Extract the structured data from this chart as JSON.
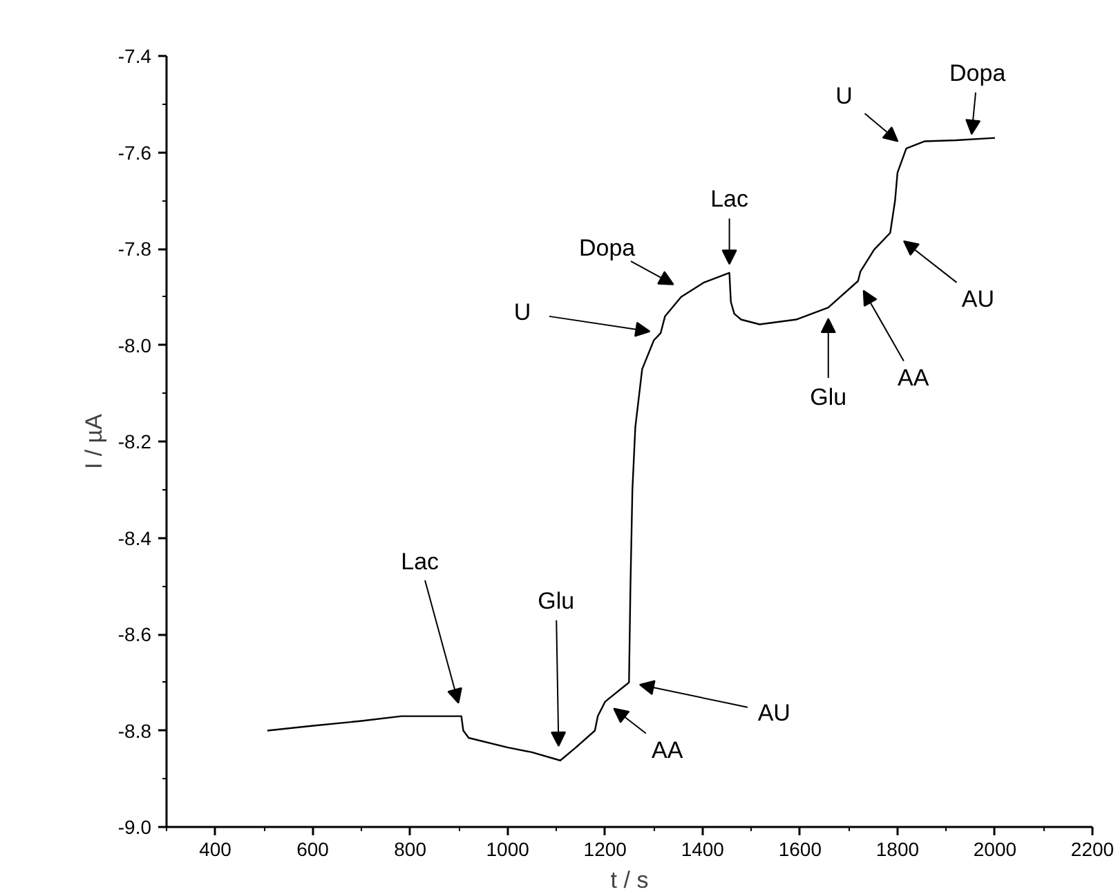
{
  "chart_data": {
    "type": "line",
    "xlabel": "t / s",
    "ylabel": "I / µA",
    "xlim": [
      300,
      2200
    ],
    "xticks": [
      400,
      600,
      800,
      1000,
      1200,
      1400,
      1600,
      1800,
      2000,
      2200
    ],
    "ylim": [
      -9.0,
      -7.4
    ],
    "yticks": [
      {
        "value": -9.0,
        "label": "-9.0"
      },
      -8.8,
      -8.6,
      -8.4,
      -8.2,
      {
        "value": -8.0,
        "label": "-8.0"
      },
      -7.8,
      -7.6,
      -7.4
    ],
    "grid": false,
    "marker": "none",
    "line_style": "solid",
    "series": [
      {
        "color": "#000000",
        "x": [
          507,
          600,
          700,
          782,
          850,
          905,
          909,
          920,
          1000,
          1050,
          1108,
          1140,
          1179,
          1185,
          1200,
          1249,
          1252,
          1256,
          1262,
          1276,
          1300,
          1314,
          1323,
          1356,
          1403,
          1455,
          1458,
          1465,
          1479,
          1517,
          1592,
          1658,
          1719,
          1724,
          1752,
          1785,
          1795,
          1800,
          1818,
          1856,
          1920,
          2000
        ],
        "values": [
          -8.8,
          -8.79,
          -8.78,
          -8.77,
          -8.77,
          -8.77,
          -8.8,
          -8.815,
          -8.835,
          -8.845,
          -8.862,
          -8.835,
          -8.8,
          -8.77,
          -8.74,
          -8.7,
          -8.5,
          -8.3,
          -8.17,
          -8.05,
          -7.99,
          -7.975,
          -7.94,
          -7.9,
          -7.87,
          -7.85,
          -7.91,
          -7.935,
          -7.947,
          -7.957,
          -7.947,
          -7.922,
          -7.867,
          -7.847,
          -7.802,
          -7.767,
          -7.7,
          -7.642,
          -7.592,
          -7.577,
          -7.575,
          -7.57
        ]
      }
    ],
    "annotations": [
      {
        "text": "Lac",
        "x": 905,
        "y": -8.765
      },
      {
        "text": "Glu",
        "x": 1105,
        "y": -8.855
      },
      {
        "text": "AA",
        "x": 1200,
        "y": -8.74
      },
      {
        "text": "AU",
        "x": 1249,
        "y": -8.7
      },
      {
        "text": "U",
        "x": 1314,
        "y": -7.975
      },
      {
        "text": "Dopa",
        "x": 1360,
        "y": -7.885
      },
      {
        "text": "Lac",
        "x": 1455,
        "y": -7.855
      },
      {
        "text": "Glu",
        "x": 1658,
        "y": -7.922
      },
      {
        "text": "AA",
        "x": 1719,
        "y": -7.867
      },
      {
        "text": "AU",
        "x": 1795,
        "y": -7.77
      },
      {
        "text": "U",
        "x": 1818,
        "y": -7.592
      },
      {
        "text": "Dopa",
        "x": 1950,
        "y": -7.585
      }
    ]
  }
}
